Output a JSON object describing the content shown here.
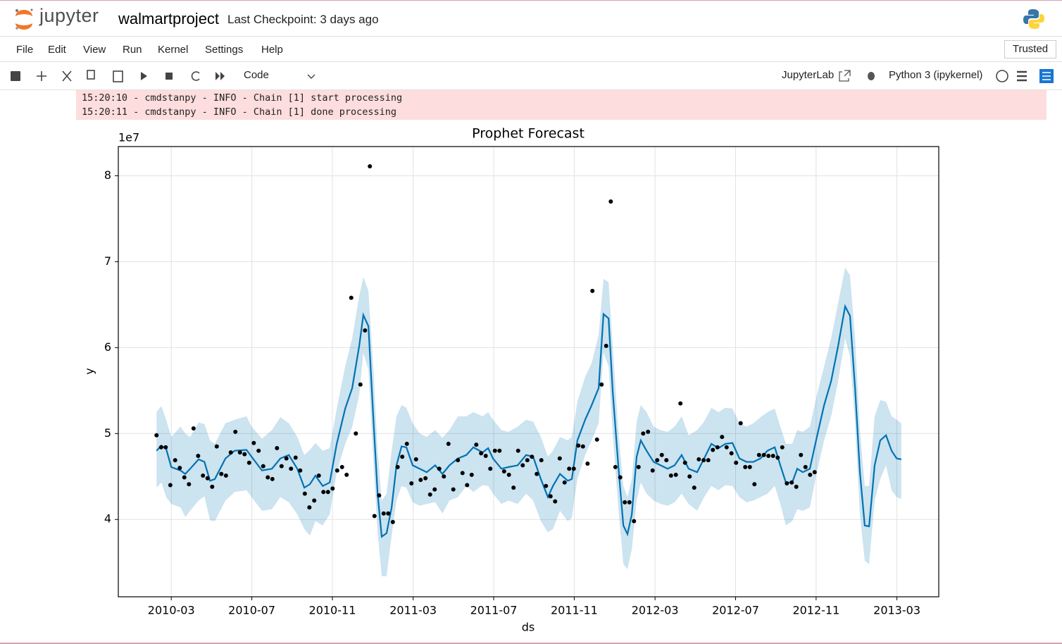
{
  "header": {
    "app_name": "jupyter",
    "notebook_name": "walmartproject",
    "checkpoint": "Last Checkpoint: 3 days ago"
  },
  "menu": {
    "items": [
      "File",
      "Edit",
      "View",
      "Run",
      "Kernel",
      "Settings",
      "Help"
    ],
    "trusted": "Trusted"
  },
  "toolbar": {
    "cell_type": "Code",
    "jupyterlab": "JupyterLab",
    "kernel": "Python 3 (ipykernel)"
  },
  "output": {
    "log_lines": [
      "15:20:10 - cmdstanpy - INFO - Chain [1] start processing",
      "15:20:11 - cmdstanpy - INFO - Chain [1] done processing"
    ]
  },
  "chart_data": {
    "type": "line",
    "title": "Prophet Forecast",
    "x_label": "ds",
    "y_label": "y",
    "y_offset_label": "1e7",
    "grid": true,
    "xlim": [
      2009.948,
      2013.34
    ],
    "ylim": [
      3.1,
      8.34
    ],
    "xticks": [
      {
        "value": 2010.167,
        "label": "2010-03"
      },
      {
        "value": 2010.5,
        "label": "2010-07"
      },
      {
        "value": 2010.833,
        "label": "2010-11"
      },
      {
        "value": 2011.167,
        "label": "2011-03"
      },
      {
        "value": 2011.5,
        "label": "2011-07"
      },
      {
        "value": 2011.833,
        "label": "2011-11"
      },
      {
        "value": 2012.167,
        "label": "2012-03"
      },
      {
        "value": 2012.5,
        "label": "2012-07"
      },
      {
        "value": 2012.833,
        "label": "2012-11"
      },
      {
        "value": 2013.167,
        "label": "2013-03"
      }
    ],
    "yticks": [
      4,
      5,
      6,
      7,
      8
    ],
    "observed": {
      "color": "#000000",
      "x": [
        2010.106,
        2010.125,
        2010.144,
        2010.163,
        2010.183,
        2010.202,
        2010.221,
        2010.24,
        2010.259,
        2010.278,
        2010.298,
        2010.317,
        2010.336,
        2010.355,
        2010.374,
        2010.393,
        2010.413,
        2010.432,
        2010.451,
        2010.47,
        2010.489,
        2010.508,
        2010.528,
        2010.547,
        2010.566,
        2010.585,
        2010.604,
        2010.623,
        2010.643,
        2010.662,
        2010.681,
        2010.7,
        2010.719,
        2010.738,
        2010.758,
        2010.777,
        2010.796,
        2010.815,
        2010.834,
        2010.853,
        2010.873,
        2010.892,
        2010.911,
        2010.93,
        2010.949,
        2010.968,
        2010.988,
        2011.007,
        2011.026,
        2011.045,
        2011.064,
        2011.083,
        2011.103,
        2011.122,
        2011.141,
        2011.16,
        2011.179,
        2011.198,
        2011.218,
        2011.237,
        2011.256,
        2011.275,
        2011.294,
        2011.313,
        2011.333,
        2011.352,
        2011.371,
        2011.39,
        2011.409,
        2011.428,
        2011.448,
        2011.467,
        2011.486,
        2011.505,
        2011.524,
        2011.543,
        2011.563,
        2011.582,
        2011.601,
        2011.62,
        2011.639,
        2011.658,
        2011.678,
        2011.697,
        2011.716,
        2011.735,
        2011.754,
        2011.773,
        2011.793,
        2011.812,
        2011.831,
        2011.85,
        2011.869,
        2011.888,
        2011.908,
        2011.927,
        2011.946,
        2011.965,
        2011.984,
        2012.003,
        2012.023,
        2012.042,
        2012.061,
        2012.08,
        2012.099,
        2012.118,
        2012.138,
        2012.157,
        2012.176,
        2012.195,
        2012.214,
        2012.233,
        2012.253,
        2012.272,
        2012.291,
        2012.31,
        2012.329,
        2012.348,
        2012.368,
        2012.387,
        2012.406,
        2012.425,
        2012.444,
        2012.463,
        2012.483,
        2012.502,
        2012.521,
        2012.54,
        2012.559,
        2012.578,
        2012.597,
        2012.617,
        2012.636,
        2012.655,
        2012.674,
        2012.693,
        2012.712,
        2012.732,
        2012.751,
        2012.77,
        2012.789,
        2012.808,
        2012.827
      ],
      "values": [
        4.98,
        4.84,
        4.84,
        4.4,
        4.69,
        4.6,
        4.49,
        4.41,
        5.06,
        4.74,
        4.51,
        4.48,
        4.38,
        4.85,
        4.53,
        4.51,
        4.78,
        5.02,
        4.78,
        4.76,
        4.66,
        4.89,
        4.8,
        4.62,
        4.49,
        4.47,
        4.83,
        4.62,
        4.71,
        4.59,
        4.72,
        4.57,
        4.3,
        4.14,
        4.22,
        4.51,
        4.32,
        4.32,
        4.36,
        4.57,
        4.61,
        4.52,
        6.58,
        5.0,
        5.57,
        6.2,
        8.11,
        4.04,
        4.28,
        4.07,
        4.07,
        3.97,
        4.61,
        4.73,
        4.88,
        4.42,
        4.7,
        4.46,
        4.48,
        4.29,
        4.35,
        4.59,
        4.5,
        4.88,
        4.35,
        4.69,
        4.54,
        4.4,
        4.52,
        4.87,
        4.77,
        4.74,
        4.59,
        4.8,
        4.8,
        4.56,
        4.52,
        4.37,
        4.8,
        4.63,
        4.69,
        4.73,
        4.53,
        4.69,
        4.39,
        4.27,
        4.21,
        4.71,
        4.43,
        4.59,
        4.59,
        4.86,
        4.85,
        4.65,
        6.66,
        4.93,
        5.57,
        6.02,
        7.7,
        4.61,
        4.49,
        4.2,
        4.2,
        3.98,
        4.61,
        5.0,
        5.02,
        4.57,
        4.69,
        4.75,
        4.69,
        4.51,
        4.52,
        5.35,
        4.66,
        4.5,
        4.37,
        4.7,
        4.69,
        4.69,
        4.81,
        4.84,
        4.96,
        4.84,
        4.77,
        4.66,
        5.12,
        4.61,
        4.61,
        4.41,
        4.75,
        4.75,
        4.74,
        4.74,
        4.72,
        4.84,
        4.42,
        4.43,
        4.38,
        4.75,
        4.61,
        4.52,
        4.55
      ]
    },
    "forecast": {
      "color": "#0072b2",
      "band_color": "#0072b2",
      "x": [
        2010.106,
        2010.126,
        2010.146,
        2010.167,
        2010.205,
        2010.225,
        2010.245,
        2010.28,
        2010.304,
        2010.327,
        2010.347,
        2010.391,
        2010.429,
        2010.478,
        2010.499,
        2010.542,
        2010.583,
        2010.618,
        2010.653,
        2010.688,
        2010.717,
        2010.74,
        2010.763,
        2010.793,
        2010.822,
        2010.851,
        2010.886,
        2010.915,
        2010.944,
        2010.961,
        2010.982,
        2011.002,
        2011.02,
        2011.037,
        2011.057,
        2011.078,
        2011.098,
        2011.119,
        2011.139,
        2011.165,
        2011.194,
        2011.223,
        2011.258,
        2011.288,
        2011.317,
        2011.352,
        2011.387,
        2011.416,
        2011.454,
        2011.477,
        2011.497,
        2011.532,
        2011.561,
        2011.599,
        2011.634,
        2011.663,
        2011.695,
        2011.724,
        2011.745,
        2011.774,
        2011.806,
        2011.823,
        2011.846,
        2011.878,
        2011.905,
        2011.934,
        2011.954,
        2011.975,
        2011.992,
        2012.015,
        2012.036,
        2012.053,
        2012.071,
        2012.091,
        2012.108,
        2012.132,
        2012.161,
        2012.19,
        2012.219,
        2012.248,
        2012.277,
        2012.306,
        2012.341,
        2012.37,
        2012.4,
        2012.429,
        2012.458,
        2012.487,
        2012.516,
        2012.545,
        2012.574,
        2012.603,
        2012.632,
        2012.662,
        2012.685,
        2012.708,
        2012.734,
        2012.755,
        2012.778,
        2012.807,
        2012.836,
        2012.866,
        2012.895,
        2012.924,
        2012.953,
        2012.973,
        2012.994,
        2013.014,
        2013.034,
        2013.052,
        2013.075,
        2013.098,
        2013.122,
        2013.145,
        2013.166,
        2013.185
      ],
      "values": [
        4.8,
        4.86,
        4.82,
        4.61,
        4.57,
        4.53,
        4.59,
        4.7,
        4.67,
        4.45,
        4.47,
        4.71,
        4.8,
        4.81,
        4.73,
        4.57,
        4.59,
        4.71,
        4.75,
        4.59,
        4.37,
        4.41,
        4.51,
        4.39,
        4.43,
        4.88,
        5.29,
        5.53,
        6.02,
        6.38,
        6.25,
        5.2,
        4.3,
        3.8,
        3.84,
        4.14,
        4.63,
        4.85,
        4.84,
        4.63,
        4.59,
        4.55,
        4.63,
        4.53,
        4.63,
        4.71,
        4.75,
        4.84,
        4.78,
        4.83,
        4.71,
        4.59,
        4.61,
        4.63,
        4.75,
        4.73,
        4.47,
        4.26,
        4.39,
        4.53,
        4.45,
        4.47,
        4.92,
        5.16,
        5.33,
        5.53,
        6.39,
        6.34,
        5.49,
        4.63,
        3.93,
        3.83,
        4.06,
        4.73,
        4.92,
        4.8,
        4.67,
        4.63,
        4.59,
        4.63,
        4.75,
        4.59,
        4.55,
        4.71,
        4.88,
        4.83,
        4.88,
        4.89,
        4.71,
        4.67,
        4.67,
        4.71,
        4.8,
        4.84,
        4.63,
        4.43,
        4.43,
        4.59,
        4.55,
        4.59,
        4.96,
        5.33,
        5.61,
        6.02,
        6.48,
        6.37,
        5.53,
        4.55,
        3.93,
        3.92,
        4.63,
        4.92,
        4.98,
        4.8,
        4.71,
        4.7
      ],
      "upper": [
        5.25,
        5.32,
        5.16,
        4.96,
        5.08,
        5.0,
        4.96,
        5.13,
        5.11,
        4.92,
        4.88,
        5.12,
        5.16,
        5.2,
        5.08,
        4.94,
        5.04,
        5.19,
        5.12,
        4.96,
        4.75,
        4.81,
        4.89,
        4.8,
        4.83,
        5.29,
        5.78,
        6.11,
        6.6,
        6.82,
        6.66,
        5.78,
        4.8,
        4.22,
        4.3,
        4.8,
        5.2,
        5.33,
        5.3,
        5.12,
        5.0,
        4.96,
        5.04,
        4.95,
        5.04,
        5.2,
        5.2,
        5.25,
        5.2,
        5.25,
        5.16,
        5.04,
        5.02,
        5.08,
        5.16,
        5.14,
        4.96,
        4.73,
        4.8,
        4.96,
        4.92,
        4.96,
        5.37,
        5.66,
        5.82,
        6.15,
        6.8,
        6.76,
        6.02,
        5.04,
        4.39,
        4.26,
        4.47,
        5.14,
        5.33,
        5.25,
        5.08,
        5.04,
        5.02,
        5.08,
        5.2,
        4.98,
        5.04,
        5.14,
        5.3,
        5.25,
        5.3,
        5.29,
        5.12,
        5.08,
        5.12,
        5.19,
        5.25,
        5.29,
        5.08,
        4.88,
        4.88,
        5.04,
        5.02,
        5.08,
        5.45,
        5.78,
        6.11,
        6.52,
        6.93,
        6.84,
        6.11,
        5.04,
        4.39,
        4.39,
        5.2,
        5.39,
        5.37,
        5.2,
        5.16,
        5.12
      ],
      "lower": [
        4.37,
        4.43,
        4.26,
        4.18,
        4.14,
        4.03,
        4.1,
        4.22,
        4.27,
        3.99,
        3.98,
        4.22,
        4.32,
        4.34,
        4.26,
        4.1,
        4.12,
        4.26,
        4.2,
        4.06,
        3.89,
        3.81,
        3.98,
        3.93,
        4.06,
        4.55,
        4.88,
        5.08,
        5.45,
        5.94,
        5.74,
        4.71,
        3.85,
        3.34,
        3.34,
        3.81,
        4.22,
        4.39,
        4.37,
        4.2,
        4.16,
        4.18,
        4.2,
        4.07,
        4.22,
        4.26,
        4.39,
        4.32,
        4.4,
        4.39,
        4.3,
        4.18,
        4.22,
        4.18,
        4.3,
        4.22,
        3.98,
        3.85,
        3.89,
        4.1,
        3.98,
        4.02,
        4.47,
        4.75,
        4.92,
        5.12,
        5.94,
        5.78,
        5.0,
        4.14,
        3.48,
        3.42,
        3.65,
        4.22,
        4.43,
        4.3,
        4.22,
        4.18,
        4.16,
        4.2,
        4.3,
        4.18,
        4.1,
        4.26,
        4.39,
        4.34,
        4.4,
        4.39,
        4.26,
        4.2,
        4.22,
        4.26,
        4.3,
        4.39,
        4.18,
        3.93,
        3.98,
        4.12,
        4.1,
        4.14,
        4.55,
        4.92,
        5.2,
        5.61,
        6.11,
        5.9,
        5.12,
        4.06,
        3.52,
        3.48,
        4.22,
        4.47,
        4.63,
        4.34,
        4.26,
        4.24
      ]
    }
  }
}
